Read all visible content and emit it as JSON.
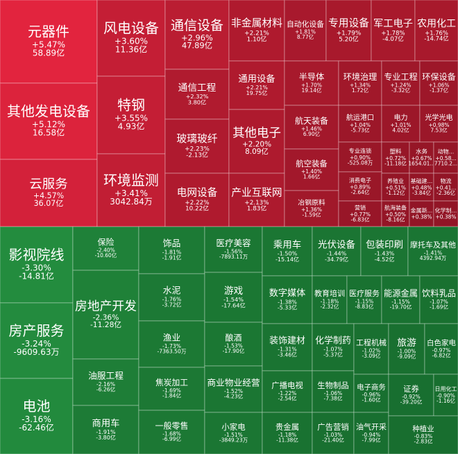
{
  "chart_data": {
    "type": "treemap",
    "categories": [
      "元器件",
      "其他发电设备",
      "云服务",
      "风电设备",
      "特钢",
      "环境监测",
      "通信设备",
      "通信工程",
      "玻璃玻纤",
      "电网设备",
      "非金属材料",
      "通用设备",
      "其他电子",
      "产业互联网",
      "自动化设备",
      "专用设备",
      "军工电子",
      "农用化工",
      "半导体",
      "环境治理",
      "专业工程",
      "环保设备",
      "航天装备",
      "航运港口",
      "电力",
      "光学光电",
      "航空装备",
      "冶钢原料",
      "专业连锁",
      "塑料",
      "水务",
      "动物...",
      "消费电子",
      "养殖业",
      "基础建...",
      "物流",
      "营销",
      "航海装备",
      "金属新...",
      "化学制...",
      "影视院线",
      "房产服务",
      "电池",
      "保险",
      "房地产开发",
      "油服工程",
      "商用车",
      "饰品",
      "水泥",
      "渔业",
      "焦炭加工",
      "一般零售",
      "医疗美容",
      "游戏",
      "酿酒",
      "商业物业经营",
      "小家电",
      "乘用车",
      "数字媒体",
      "装饰建材",
      "广播电视",
      "贵金属",
      "光伏设备",
      "包装印刷",
      "摩托车及其他",
      "教育培训",
      "医疗服务",
      "能源金属",
      "饮料乳品",
      "化学制药",
      "生物制品",
      "广告营销",
      "工程机械",
      "旅游",
      "白色家电",
      "电子商务",
      "油气开采",
      "证券",
      "日用化工",
      "种植业"
    ],
    "values": [
      5.47,
      5.12,
      4.57,
      3.6,
      3.55,
      3.41,
      2.96,
      2.32,
      2.23,
      2.22,
      2.21,
      2.21,
      2.2,
      2.13,
      1.81,
      1.79,
      1.78,
      1.76,
      1.7,
      1.34,
      1.24,
      1.06,
      1.46,
      1.04,
      1.01,
      0.98,
      1.4,
      1.36,
      0.9,
      0.72,
      0.67,
      0.58,
      0.89,
      0.51,
      0.48,
      0.41,
      0.77,
      0.5,
      0.38,
      0.38,
      -3.3,
      -3.24,
      -3.16,
      -2.4,
      -2.36,
      -2.16,
      -1.91,
      -1.81,
      -1.76,
      -1.73,
      -1.69,
      -1.68,
      -1.56,
      -1.54,
      -1.53,
      -1.52,
      -1.51,
      -1.5,
      -1.38,
      -1.31,
      -1.22,
      -1.18,
      -1.44,
      -1.43,
      -1.41,
      -1.18,
      -1.15,
      -1.15,
      -1.07,
      -1.07,
      -1.06,
      -1.03,
      -1.02,
      -1.0,
      -0.97,
      -0.96,
      -0.94,
      -0.92,
      -0.9,
      -0.83
    ],
    "value_labels": [
      "+5.47%",
      "+5.12%",
      "+4.57%",
      "+3.60%",
      "+3.55%",
      "+3.41%",
      "+2.96%",
      "+2.32%",
      "+2.23%",
      "+2.22%",
      "+2.21%",
      "+2.21%",
      "+2.20%",
      "+2.13%",
      "+1.81%",
      "+1.79%",
      "+1.78%",
      "+1.76%",
      "+1.70%",
      "+1.34%",
      "+1.24%",
      "+1.06%",
      "+1.46%",
      "+1.04%",
      "+1.01%",
      "+0.98%",
      "+1.40%",
      "+1.36%",
      "+0.90%",
      "+0.72%",
      "+0.67%",
      "+0.58...",
      "+0.89%",
      "+0.51%",
      "+0.48%",
      "+0.41...",
      "+0.77%",
      "+0.50%",
      "+0.38%",
      "+0.38%",
      "-3.30%",
      "-3.24%",
      "-3.16%",
      "-2.40%",
      "-2.36%",
      "-2.16%",
      "-1.91%",
      "-1.81%",
      "-1.76%",
      "-1.73%",
      "-1.69%",
      "-1.68%",
      "-1.56%",
      "-1.54%",
      "-1.53%",
      "-1.52%",
      "-1.51%",
      "-1.50%",
      "-1.38%",
      "-1.31%",
      "-1.22%",
      "-1.18%",
      "-1.44%",
      "-1.43%",
      "-1.41%",
      "-1.18%",
      "-1.15%",
      "-1.15%",
      "-1.07%",
      "-1.07%",
      "-1.06%",
      "-1.03%",
      "-1.02%",
      "-1.00%",
      "-0.97%",
      "-0.96%",
      "-0.94%",
      "-0.92%",
      "-0.90%",
      "-0.83%"
    ],
    "flow_labels": [
      "58.89亿",
      "16.58亿",
      "36.07亿",
      "11.36亿",
      "4.93亿",
      "3042.84万",
      "47.89亿",
      "3.80亿",
      "-2.13亿",
      "10.22亿",
      "1.10亿",
      "19.75亿",
      "8.09亿",
      "1.83亿",
      "8.77亿",
      "5.20亿",
      "-4.07亿",
      "-14.74亿",
      "19.14亿",
      "1.72亿",
      "-3.32亿",
      "-1.37亿",
      "6.90亿",
      "-5.73亿",
      "4.02亿",
      "7.53亿",
      "1.66亿",
      "-1.59亿",
      "-525.08万",
      "-11.18亿",
      "1654.01...",
      "7710.2...",
      "-2.64亿",
      "-1.12亿",
      "-3.84亿",
      "-2.36亿",
      "-6.83亿",
      "-8.16亿",
      null,
      null,
      "-14.81亿",
      "-9609.63万",
      "-62.46亿",
      "-10.60亿",
      "-11.28亿",
      "-6.26亿",
      "-3.80亿",
      "-1.91亿",
      "-3.72亿",
      "-7363.50万",
      "-1.84亿",
      "-6.99亿",
      "-7893.11万",
      "-17.64亿",
      "-17.90亿",
      "-4.23亿",
      "-3849.23万",
      "-15.14亿",
      "-5.33亿",
      "-3.46亿",
      "-2.54亿",
      "-11.38亿",
      "-34.79亿",
      "-4.52亿",
      "4392.94万",
      "-2.32亿",
      "-8.83亿",
      "-19.70亿",
      "-1.69亿",
      "-5.37亿",
      "-7.38亿",
      "-21.40亿",
      "-3.09亿",
      "-9.09亿",
      "-6.82亿",
      "-1.60亿",
      "-7.99亿",
      "-39.20亿",
      "-1.16亿",
      "-2.83亿"
    ]
  }
}
